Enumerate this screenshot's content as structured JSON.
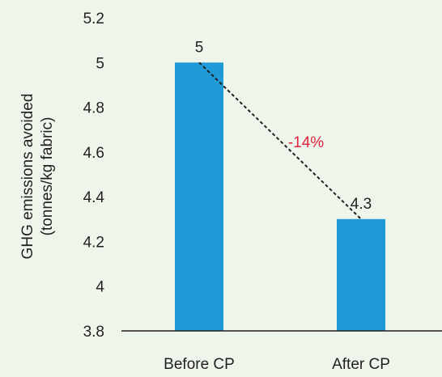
{
  "chart_data": {
    "type": "bar",
    "categories": [
      "Before CP",
      "After CP"
    ],
    "values": [
      5,
      4.3
    ],
    "data_labels": [
      "5",
      "4.3"
    ],
    "ylabel_lines": [
      "GHG emissions avoided",
      "(tonnes/kg fabric)"
    ],
    "ylim": [
      3.8,
      5.2
    ],
    "yticks": [
      "3.8",
      "4",
      "4.2",
      "4.4",
      "4.6",
      "4.8",
      "5",
      "5.2"
    ],
    "change_annotation": "-14%",
    "grid": false,
    "colors": {
      "bar": "#1f9ad6",
      "annotation": "#e4233f",
      "text": "#231f20",
      "background": "#eef6ec"
    }
  }
}
